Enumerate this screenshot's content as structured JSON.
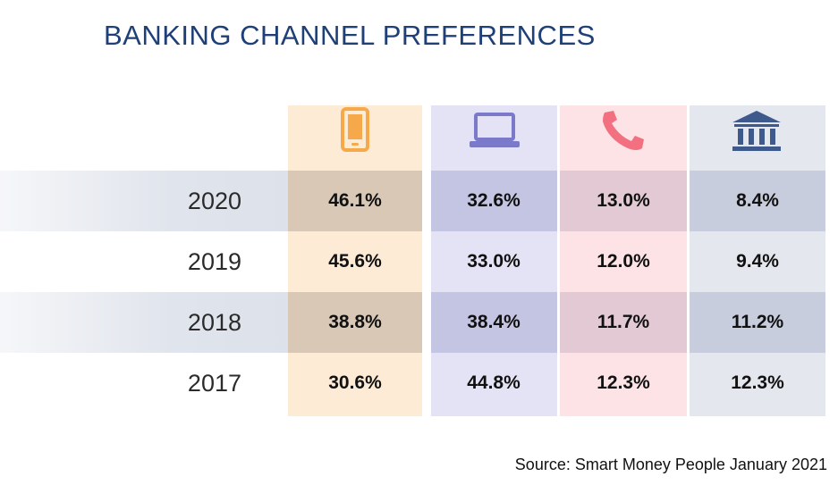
{
  "title": "BANKING CHANNEL PREFERENCES",
  "source": "Source: Smart Money People January 2021",
  "colors": {
    "title": "#1f3f77",
    "mobile": "#f5a94a",
    "online": "#7b79c9",
    "phone": "#f2707f",
    "branch": "#3e5a8c"
  },
  "icons": [
    "mobile-phone-icon",
    "laptop-icon",
    "telephone-icon",
    "bank-building-icon"
  ],
  "chart_data": {
    "type": "table",
    "title": "BANKING CHANNEL PREFERENCES",
    "columns": [
      "mobile-phone-icon",
      "laptop-icon",
      "telephone-icon",
      "bank-building-icon"
    ],
    "rows": [
      {
        "year": "2020",
        "values": [
          "46.1%",
          "32.6%",
          "13.0%",
          "8.4%"
        ]
      },
      {
        "year": "2019",
        "values": [
          "45.6%",
          "33.0%",
          "12.0%",
          "9.4%"
        ]
      },
      {
        "year": "2018",
        "values": [
          "38.8%",
          "38.4%",
          "11.7%",
          "11.2%"
        ]
      },
      {
        "year": "2017",
        "values": [
          "30.6%",
          "44.8%",
          "12.3%",
          "12.3%"
        ]
      }
    ]
  }
}
